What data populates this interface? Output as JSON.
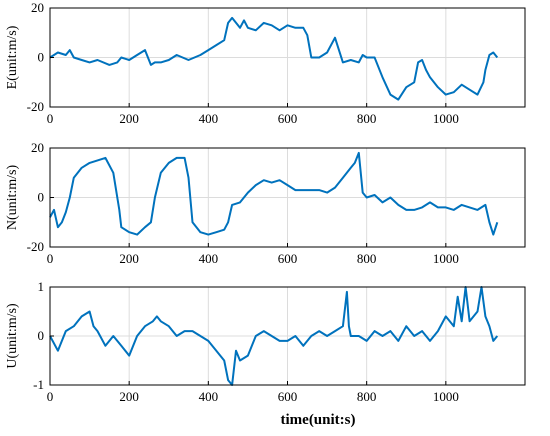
{
  "chart_data": [
    {
      "type": "line",
      "ylabel": "E(unit:m/s)",
      "xlim": [
        0,
        1200
      ],
      "ylim": [
        -20,
        20
      ],
      "xticks": [
        0,
        200,
        400,
        600,
        800,
        1000
      ],
      "yticks": [
        -20,
        0,
        20
      ],
      "grid": true,
      "color": "#0072BD",
      "series": [
        {
          "x": [
            0,
            20,
            40,
            50,
            60,
            80,
            100,
            120,
            150,
            170,
            180,
            200,
            220,
            240,
            255,
            265,
            280,
            300,
            320,
            350,
            380,
            400,
            420,
            440,
            450,
            460,
            480,
            490,
            500,
            520,
            540,
            560,
            580,
            600,
            620,
            640,
            650,
            660,
            680,
            700,
            720,
            740,
            760,
            780,
            790,
            800,
            820,
            840,
            860,
            880,
            900,
            920,
            930,
            940,
            950,
            960,
            980,
            1000,
            1020,
            1040,
            1060,
            1080,
            1095,
            1100,
            1110,
            1120,
            1130
          ],
          "y": [
            0,
            2,
            1,
            3,
            0,
            -1,
            -2,
            -1,
            -3,
            -2,
            0,
            -1,
            1,
            3,
            -3,
            -2,
            -2,
            -1,
            1,
            -1,
            1,
            3,
            5,
            7,
            14,
            16,
            12,
            15,
            12,
            11,
            14,
            13,
            11,
            13,
            12,
            12,
            9,
            0,
            0,
            2,
            8,
            -2,
            -1,
            -2,
            1,
            0,
            0,
            -8,
            -15,
            -17,
            -12,
            -10,
            -2,
            -1,
            -5,
            -8,
            -12,
            -15,
            -14,
            -11,
            -13,
            -15,
            -10,
            -5,
            1,
            2,
            0
          ]
        }
      ]
    },
    {
      "type": "line",
      "ylabel": "N(unit:m/s)",
      "xlim": [
        0,
        1200
      ],
      "ylim": [
        -20,
        20
      ],
      "xticks": [
        0,
        200,
        400,
        600,
        800,
        1000
      ],
      "yticks": [
        -20,
        0,
        20
      ],
      "grid": true,
      "color": "#0072BD",
      "series": [
        {
          "x": [
            0,
            10,
            20,
            30,
            40,
            50,
            60,
            80,
            100,
            120,
            140,
            160,
            175,
            180,
            200,
            220,
            240,
            255,
            265,
            280,
            300,
            320,
            340,
            350,
            360,
            380,
            400,
            420,
            440,
            450,
            460,
            480,
            500,
            520,
            540,
            560,
            580,
            600,
            620,
            640,
            660,
            680,
            700,
            720,
            740,
            760,
            770,
            780,
            790,
            800,
            820,
            840,
            860,
            880,
            900,
            920,
            940,
            960,
            980,
            1000,
            1020,
            1040,
            1060,
            1080,
            1100,
            1110,
            1120,
            1130
          ],
          "y": [
            -8,
            -5,
            -12,
            -10,
            -6,
            0,
            8,
            12,
            14,
            15,
            16,
            10,
            -5,
            -12,
            -14,
            -15,
            -12,
            -10,
            0,
            10,
            14,
            16,
            16,
            8,
            -10,
            -14,
            -15,
            -14,
            -13,
            -10,
            -3,
            -2,
            2,
            5,
            7,
            6,
            7,
            5,
            3,
            3,
            3,
            3,
            2,
            4,
            8,
            12,
            14,
            18,
            2,
            0,
            1,
            -2,
            0,
            -3,
            -5,
            -5,
            -4,
            -2,
            -4,
            -4,
            -5,
            -3,
            -4,
            -5,
            -3,
            -10,
            -15,
            -10
          ]
        }
      ]
    },
    {
      "type": "line",
      "ylabel": "U(unit:m/s)",
      "xlabel": "time(unit:s)",
      "xlim": [
        0,
        1200
      ],
      "ylim": [
        -1,
        1
      ],
      "xticks": [
        0,
        200,
        400,
        600,
        800,
        1000
      ],
      "yticks": [
        -1,
        0,
        1
      ],
      "grid": true,
      "color": "#0072BD",
      "series": [
        {
          "x": [
            0,
            20,
            40,
            60,
            80,
            100,
            110,
            120,
            140,
            160,
            180,
            200,
            220,
            240,
            260,
            270,
            280,
            300,
            320,
            340,
            360,
            380,
            400,
            420,
            440,
            450,
            460,
            470,
            480,
            500,
            520,
            540,
            560,
            580,
            600,
            620,
            640,
            660,
            680,
            700,
            720,
            740,
            750,
            755,
            760,
            780,
            800,
            820,
            840,
            860,
            880,
            900,
            920,
            940,
            960,
            980,
            1000,
            1020,
            1030,
            1040,
            1050,
            1060,
            1080,
            1090,
            1100,
            1110,
            1120,
            1130
          ],
          "y": [
            0,
            -0.3,
            0.1,
            0.2,
            0.4,
            0.5,
            0.2,
            0.1,
            -0.2,
            0,
            -0.2,
            -0.4,
            0,
            0.2,
            0.3,
            0.4,
            0.3,
            0.2,
            0,
            0.1,
            0.1,
            0,
            -0.1,
            -0.3,
            -0.5,
            -0.9,
            -1,
            -0.3,
            -0.5,
            -0.4,
            0,
            0.1,
            0,
            -0.1,
            -0.1,
            0,
            -0.2,
            0,
            0.1,
            0,
            0.1,
            0.2,
            0.9,
            0.2,
            0,
            0,
            -0.1,
            0.1,
            0,
            0.1,
            -0.1,
            0.2,
            0,
            0.1,
            -0.1,
            0.1,
            0.4,
            0.2,
            0.8,
            0.3,
            1,
            0.3,
            0.5,
            1,
            0.4,
            0.2,
            -0.1,
            0
          ]
        }
      ]
    }
  ]
}
